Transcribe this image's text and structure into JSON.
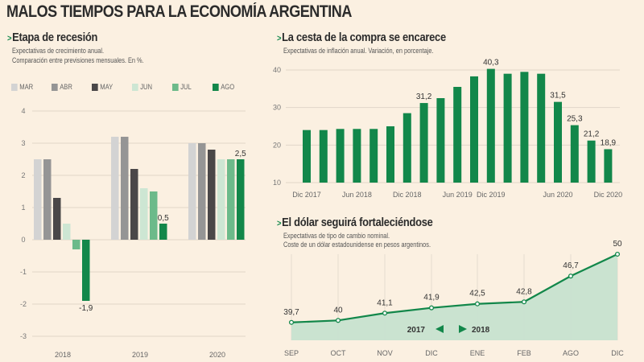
{
  "header": {
    "title": "MALOS TIEMPOS PARA LA ECONOMÍA ARGENTINA"
  },
  "colors": {
    "accent": "#12874a",
    "background": "#fbf0e1",
    "area_fill": "#c7e2cf",
    "grid": "#e0d6c8"
  },
  "sections": {
    "recession": {
      "marker": ">",
      "title": "Etapa de recesión",
      "subtitle_1": "Expectativas de crecimiento anual.",
      "subtitle_2": "Comparación entre previsiones mensuales. En %."
    },
    "inflation": {
      "marker": ">",
      "title": "La cesta de la compra se encarece",
      "subtitle_1": "Expectativas de inflación anual. Variación, en porcentaje."
    },
    "dollar": {
      "marker": ">",
      "title": "El dólar seguirá fortaleciéndose",
      "subtitle_1": "Expectativas de tipo de cambio nominal.",
      "subtitle_2": "Coste de un dólar estadounidense en pesos argentinos."
    }
  },
  "chart_data": [
    {
      "type": "bar",
      "title": "Etapa de recesión",
      "subtitle": "Expectativas de crecimiento anual. Comparación entre previsiones mensuales. En %.",
      "categories": [
        "2018",
        "2019",
        "2020"
      ],
      "series": [
        {
          "name": "MAR",
          "color": "#d3d3d3",
          "values": [
            2.5,
            3.2,
            3.0
          ]
        },
        {
          "name": "ABR",
          "color": "#959595",
          "values": [
            2.5,
            3.2,
            3.0
          ]
        },
        {
          "name": "MAY",
          "color": "#4a4748",
          "values": [
            1.3,
            2.2,
            2.8
          ]
        },
        {
          "name": "JUN",
          "color": "#cde6d3",
          "values": [
            0.5,
            1.6,
            2.5
          ]
        },
        {
          "name": "JUL",
          "color": "#6cba8a",
          "values": [
            -0.3,
            1.5,
            2.5
          ]
        },
        {
          "name": "AGO",
          "color": "#12874a",
          "values": [
            -1.9,
            0.5,
            2.5
          ]
        }
      ],
      "data_labels": [
        {
          "series": "AGO",
          "category": "2018",
          "text": "-1,9"
        },
        {
          "series": "AGO",
          "category": "2019",
          "text": "0,5"
        },
        {
          "series": "AGO",
          "category": "2020",
          "text": "2,5"
        }
      ],
      "yticks": [
        "4",
        "3",
        "2",
        "1",
        "0",
        "-1",
        "-2",
        "-3"
      ],
      "ylim": [
        -3,
        4
      ],
      "xlabel": "",
      "ylabel": "",
      "grid": true,
      "legend": "top"
    },
    {
      "type": "bar",
      "title": "La cesta de la compra se encarece",
      "subtitle": "Expectativas de inflación anual. Variación, en porcentaje.",
      "x_tick_labels": [
        "Dic 2017",
        "Jun 2018",
        "Dic 2018",
        "Jun 2019",
        "Dic 2019",
        "Jun 2020",
        "Dic 2020"
      ],
      "x_tick_positions": [
        0,
        3,
        6,
        9,
        11,
        15,
        18
      ],
      "values": [
        24,
        24,
        24.3,
        24.3,
        24.3,
        25,
        28.5,
        31.2,
        32.5,
        35.5,
        38.3,
        40.3,
        39,
        39.5,
        39,
        31.5,
        25.3,
        21.2,
        18.9
      ],
      "data_labels": [
        {
          "index": 7,
          "text": "31,2"
        },
        {
          "index": 11,
          "text": "40,3"
        },
        {
          "index": 15,
          "text": "31,5"
        },
        {
          "index": 16,
          "text": "25,3"
        },
        {
          "index": 17,
          "text": "21,2"
        },
        {
          "index": 18,
          "text": "18,9"
        }
      ],
      "yticks": [
        "40",
        "30",
        "20",
        "10"
      ],
      "ylim": [
        10,
        40
      ],
      "color": "#12874a",
      "grid": true,
      "xlabel": "",
      "ylabel": ""
    },
    {
      "type": "area",
      "title": "El dólar seguirá fortaleciéndose",
      "subtitle": "Expectativas de tipo de cambio nominal. Coste de un dólar estadounidense en pesos argentinos.",
      "categories": [
        "SEP",
        "OCT",
        "NOV",
        "DIC",
        "ENE",
        "FEB",
        "AGO",
        "DIC"
      ],
      "values": [
        39.7,
        40,
        41.1,
        41.9,
        42.5,
        42.8,
        46.7,
        50
      ],
      "data_labels": [
        "39,7",
        "40",
        "41,1",
        "41,9",
        "42,5",
        "42,8",
        "46,7",
        "50"
      ],
      "year_marker": {
        "left": "2017",
        "right": "2018",
        "between": [
          "DIC",
          "ENE"
        ]
      },
      "ylim": [
        37,
        50
      ],
      "color": "#12874a",
      "fill": "#c7e2cf",
      "grid": false,
      "xlabel": "",
      "ylabel": ""
    }
  ]
}
